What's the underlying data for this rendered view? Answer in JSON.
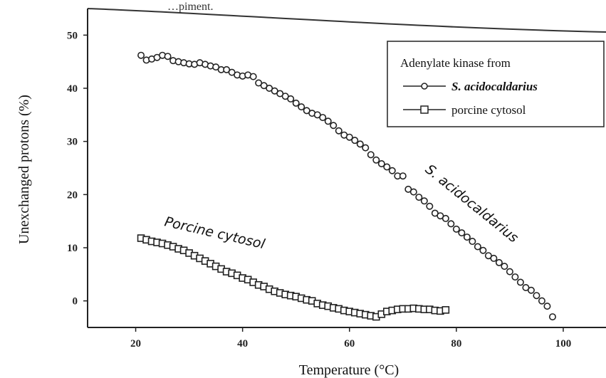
{
  "page": {
    "top_text": "…piment."
  },
  "chart_data": {
    "type": "scatter",
    "xlabel": "Temperature (°C)",
    "ylabel": "Unexchanged protons (%)",
    "xlim": [
      11,
      108
    ],
    "ylim": [
      -5,
      55
    ],
    "xticks": [
      20,
      40,
      60,
      80,
      100
    ],
    "yticks": [
      0,
      10,
      20,
      30,
      40,
      50
    ],
    "grid": false,
    "legend": {
      "title": "Adenylate kinase from",
      "placement": "top-right",
      "entries": [
        {
          "label": "S. acidocaldarius",
          "marker": "circle"
        },
        {
          "label": "porcine cytosol",
          "marker": "square"
        }
      ]
    },
    "annotations": [
      {
        "text": "S. acidocaldarius",
        "series": "S. acidocaldarius"
      },
      {
        "text": "Porcine cytosol",
        "series": "porcine cytosol"
      }
    ],
    "series": [
      {
        "name": "S. acidocaldarius",
        "marker": "circle",
        "x": [
          21,
          22,
          23,
          24,
          25,
          26,
          27,
          28,
          29,
          30,
          31,
          32,
          33,
          34,
          35,
          36,
          37,
          38,
          39,
          40,
          41,
          42,
          43,
          44,
          45,
          46,
          47,
          48,
          49,
          50,
          51,
          52,
          53,
          54,
          55,
          56,
          57,
          58,
          59,
          60,
          61,
          62,
          63,
          64,
          65,
          66,
          67,
          68,
          69,
          70,
          71,
          72,
          73,
          74,
          75,
          76,
          77,
          78,
          79,
          80,
          81,
          82,
          83,
          84,
          85,
          86,
          87,
          88,
          89,
          90,
          91,
          92,
          93,
          94,
          95,
          96,
          97,
          98
        ],
        "y": [
          46.2,
          45.3,
          45.5,
          45.8,
          46.2,
          46.0,
          45.2,
          45.0,
          44.8,
          44.6,
          44.5,
          44.8,
          44.5,
          44.2,
          44.0,
          43.5,
          43.5,
          43.0,
          42.5,
          42.3,
          42.5,
          42.2,
          41.0,
          40.5,
          40.0,
          39.5,
          39.0,
          38.5,
          38.0,
          37.2,
          36.5,
          35.8,
          35.3,
          35.0,
          34.5,
          33.8,
          33.0,
          32.0,
          31.2,
          30.8,
          30.2,
          29.5,
          28.8,
          27.5,
          26.5,
          25.8,
          25.2,
          24.5,
          23.5,
          23.5,
          21.0,
          20.5,
          19.5,
          18.8,
          17.8,
          16.5,
          16.0,
          15.5,
          14.5,
          13.5,
          12.8,
          12.0,
          11.2,
          10.2,
          9.5,
          8.5,
          8.0,
          7.2,
          6.5,
          5.5,
          4.5,
          3.5,
          2.5,
          2.0,
          1.0,
          0.0,
          -1.0,
          -3.0
        ]
      },
      {
        "name": "porcine cytosol",
        "marker": "square",
        "x": [
          21,
          22,
          23,
          24,
          25,
          26,
          27,
          28,
          29,
          30,
          31,
          32,
          33,
          34,
          35,
          36,
          37,
          38,
          39,
          40,
          41,
          42,
          43,
          44,
          45,
          46,
          47,
          48,
          49,
          50,
          51,
          52,
          53,
          54,
          55,
          56,
          57,
          58,
          59,
          60,
          61,
          62,
          63,
          64,
          65,
          66,
          67,
          68,
          69,
          70,
          71,
          72,
          73,
          74,
          75,
          76,
          77,
          78
        ],
        "y": [
          11.8,
          11.5,
          11.2,
          11.0,
          10.8,
          10.5,
          10.2,
          9.8,
          9.5,
          9.0,
          8.5,
          8.0,
          7.5,
          7.0,
          6.5,
          6.0,
          5.5,
          5.2,
          4.8,
          4.3,
          4.0,
          3.5,
          3.0,
          2.7,
          2.2,
          1.8,
          1.5,
          1.2,
          1.0,
          0.8,
          0.5,
          0.2,
          0.0,
          -0.5,
          -0.8,
          -1.0,
          -1.3,
          -1.5,
          -1.8,
          -2.0,
          -2.2,
          -2.4,
          -2.6,
          -2.8,
          -3.0,
          -2.5,
          -2.0,
          -1.8,
          -1.6,
          -1.5,
          -1.5,
          -1.4,
          -1.5,
          -1.6,
          -1.6,
          -1.8,
          -1.9,
          -1.7
        ]
      }
    ]
  }
}
